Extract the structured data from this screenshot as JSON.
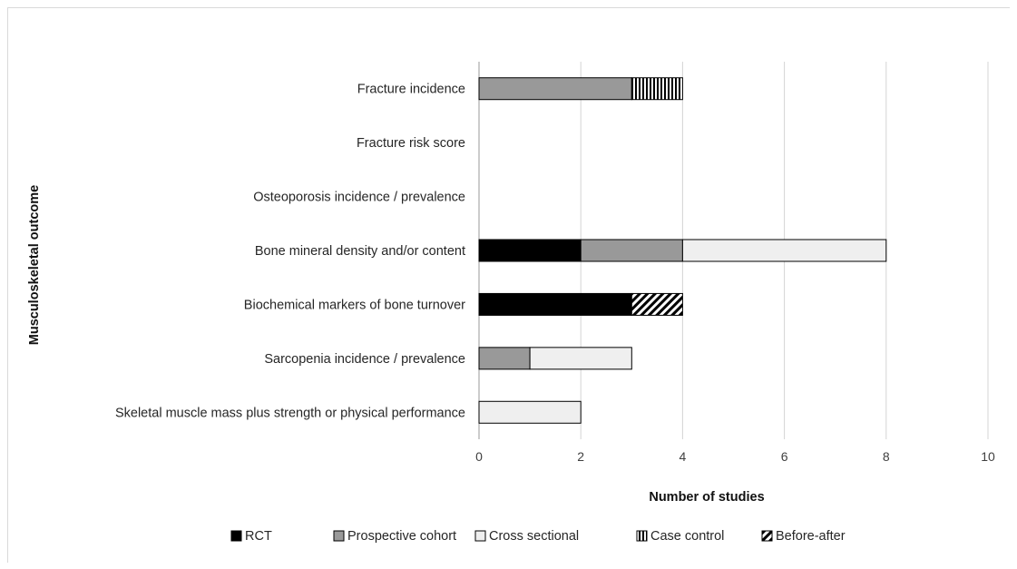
{
  "chart_data": {
    "type": "bar",
    "orientation": "horizontal",
    "stacked": true,
    "categories": [
      "Fracture incidence",
      "Fracture risk score",
      "Osteoporosis incidence / prevalence",
      "Bone mineral density and/or content",
      "Biochemical markers of bone turnover",
      "Sarcopenia incidence / prevalence",
      "Skeletal muscle mass plus strength or physical performance"
    ],
    "series": [
      {
        "name": "RCT",
        "color": "#000000",
        "pattern": "solid",
        "values": [
          0,
          0,
          0,
          2,
          3,
          0,
          0
        ]
      },
      {
        "name": "Prospective cohort",
        "color": "#999999",
        "pattern": "solid",
        "values": [
          3,
          0,
          0,
          2,
          0,
          1,
          0
        ]
      },
      {
        "name": "Cross sectional",
        "color": "#efefef",
        "pattern": "solid",
        "values": [
          0,
          0,
          0,
          4,
          0,
          2,
          2
        ]
      },
      {
        "name": "Case control",
        "color": "#000000",
        "pattern": "vertical-stripes",
        "values": [
          1,
          0,
          0,
          0,
          0,
          0,
          0
        ]
      },
      {
        "name": "Before-after",
        "color": "#000000",
        "pattern": "diagonal-stripes",
        "values": [
          0,
          0,
          0,
          0,
          1,
          0,
          0
        ]
      }
    ],
    "xlabel": "Number of studies",
    "ylabel": "Musculoskeletal outcome",
    "xlim": [
      0,
      10
    ],
    "xticks": [
      "0",
      "2",
      "4",
      "6",
      "8",
      "10"
    ],
    "grid": true,
    "legend_position": "bottom"
  }
}
